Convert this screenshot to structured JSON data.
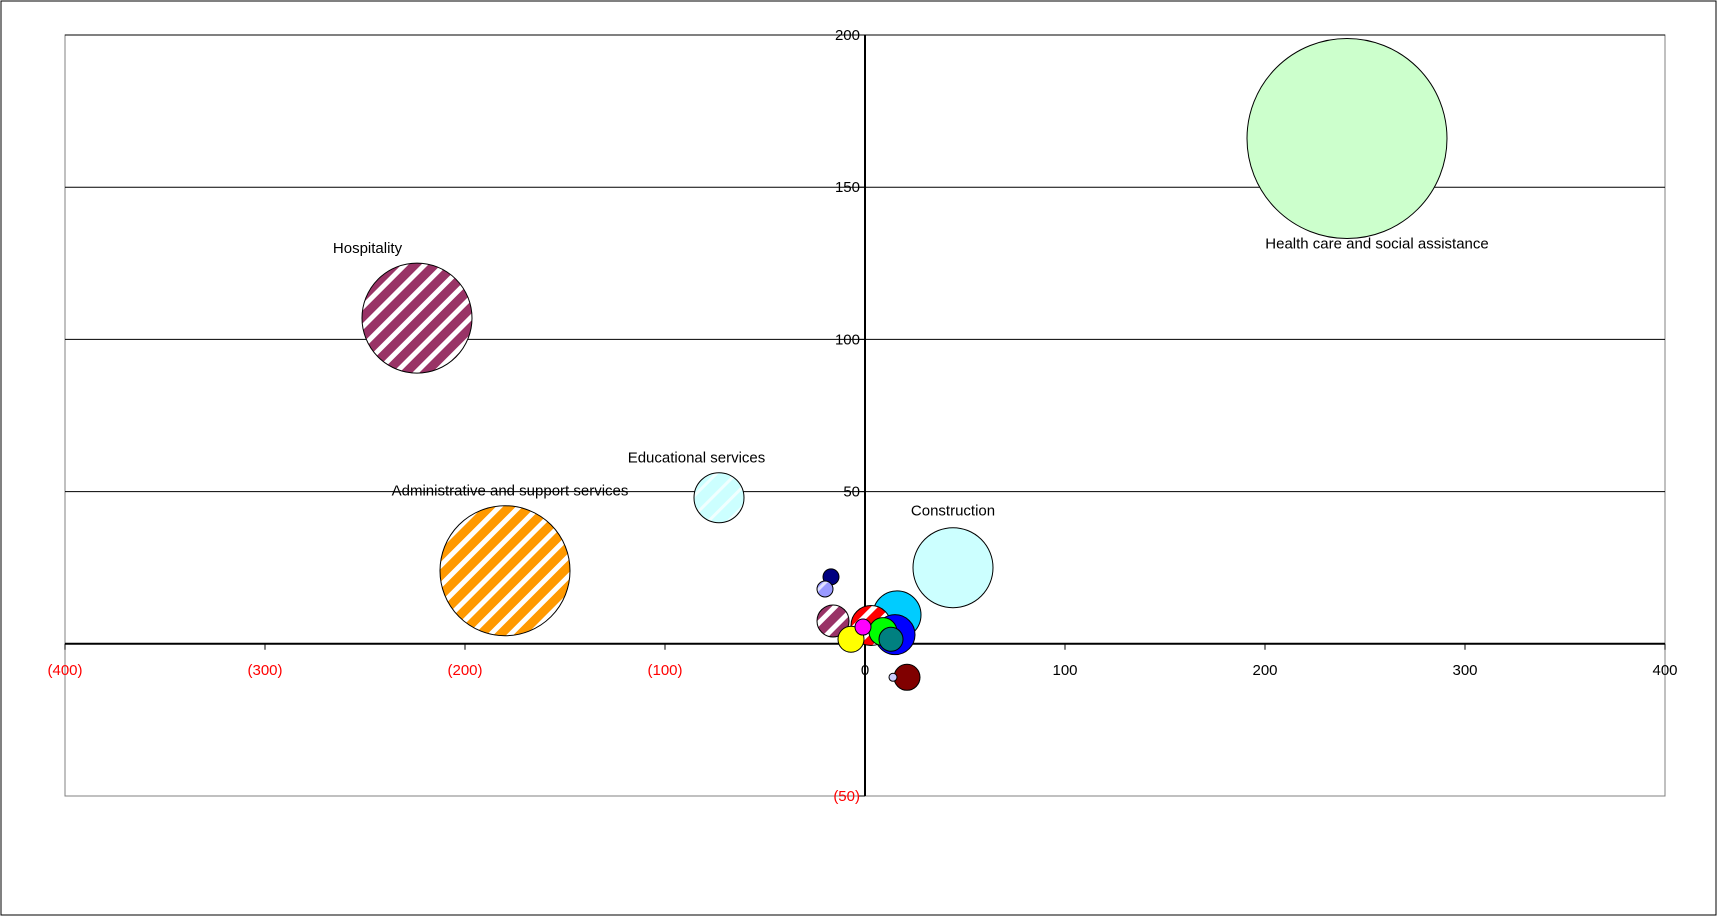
{
  "chart_data": {
    "type": "bubble",
    "title": "",
    "xlabel": "",
    "ylabel": "",
    "xlim": [
      -400,
      400
    ],
    "ylim": [
      -50,
      200
    ],
    "grid": "horizontal",
    "x_ticks": [
      {
        "value": -400,
        "label": "(400)",
        "negative": true
      },
      {
        "value": -300,
        "label": "(300)",
        "negative": true
      },
      {
        "value": -200,
        "label": "(200)",
        "negative": true
      },
      {
        "value": -100,
        "label": "(100)",
        "negative": true
      },
      {
        "value": 0,
        "label": "0",
        "negative": false
      },
      {
        "value": 100,
        "label": "100",
        "negative": false
      },
      {
        "value": 200,
        "label": "200",
        "negative": false
      },
      {
        "value": 300,
        "label": "300",
        "negative": false
      },
      {
        "value": 400,
        "label": "400",
        "negative": false
      }
    ],
    "y_ticks": [
      {
        "value": -50,
        "label": "(50)",
        "negative": true
      },
      {
        "value": 50,
        "label": "50",
        "negative": false
      },
      {
        "value": 100,
        "label": "100",
        "negative": false
      },
      {
        "value": 150,
        "label": "150",
        "negative": false
      },
      {
        "value": 200,
        "label": "200",
        "negative": false
      }
    ],
    "bubbles": [
      {
        "label": "Health care and social assistance",
        "x": 241,
        "y": 166,
        "size": 50,
        "color": "#ccffcc",
        "pattern": "solid"
      },
      {
        "label": "Hospitality",
        "x": -224,
        "y": 107,
        "size": 27.5,
        "color": "#993366",
        "pattern": "stripes"
      },
      {
        "label": "Administrative and support services",
        "x": -180,
        "y": 24,
        "size": 32.5,
        "color": "#ff9900",
        "pattern": "stripes"
      },
      {
        "label": "Educational services",
        "x": -73,
        "y": 48,
        "size": 12.5,
        "color": "#ccffff",
        "pattern": "dots"
      },
      {
        "label": "Construction",
        "x": 44,
        "y": 25,
        "size": 20,
        "color": "#ccffff",
        "pattern": "solid"
      },
      {
        "label": "",
        "x": 3,
        "y": 6,
        "size": 10,
        "color": "#ff0000",
        "pattern": "stripes"
      },
      {
        "label": "",
        "x": 13,
        "y": 1.5,
        "size": 6,
        "color": "#008080",
        "pattern": "solid"
      },
      {
        "label": "",
        "x": 9,
        "y": 4,
        "size": 7,
        "color": "#00ff00",
        "pattern": "solid"
      },
      {
        "label": "",
        "x": 15,
        "y": 3,
        "size": 10,
        "color": "#0000ff",
        "pattern": "solid"
      },
      {
        "label": "",
        "x": 16,
        "y": 9.5,
        "size": 12,
        "color": "#00ccff",
        "pattern": "solid"
      },
      {
        "label": "",
        "x": -16,
        "y": 7.5,
        "size": 8,
        "color": "#993366",
        "pattern": "stripes"
      },
      {
        "label": "",
        "x": -7,
        "y": 1.5,
        "size": 6.5,
        "color": "#ffff00",
        "pattern": "solid"
      },
      {
        "label": "",
        "x": -1,
        "y": 5.5,
        "size": 4,
        "color": "#ff00ff",
        "pattern": "solid"
      },
      {
        "label": "",
        "x": -17,
        "y": 22,
        "size": 4,
        "color": "#000080",
        "pattern": "solid"
      },
      {
        "label": "",
        "x": -20,
        "y": 18,
        "size": 4,
        "color": "#9999ff",
        "pattern": "dots"
      },
      {
        "label": "",
        "x": 21,
        "y": -11,
        "size": 6.5,
        "color": "#800000",
        "pattern": "solid"
      },
      {
        "label": "",
        "x": 14,
        "y": -11,
        "size": 2,
        "color": "#ccccff",
        "pattern": "solid"
      }
    ]
  }
}
